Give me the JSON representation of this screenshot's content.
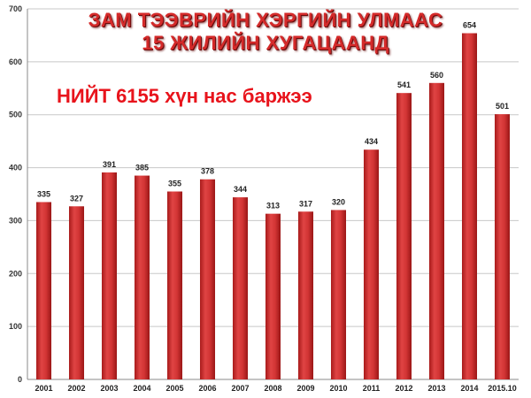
{
  "chart_data": {
    "type": "bar",
    "title_lines": [
      "ЗАМ ТЭЭВРИЙН ХЭРГИЙН УЛМААС",
      "15 ЖИЛИЙН ХУГАЦААНД"
    ],
    "annotation": "НИЙТ 6155 хүн нас  баржээ",
    "categories": [
      "2001",
      "2002",
      "2003",
      "2004",
      "2005",
      "2006",
      "2007",
      "2008",
      "2009",
      "2010",
      "2011",
      "2012",
      "2013",
      "2014",
      "2015.10"
    ],
    "values": [
      335,
      327,
      391,
      385,
      355,
      378,
      344,
      313,
      317,
      320,
      434,
      541,
      560,
      654,
      501
    ],
    "ylim": [
      0,
      700
    ],
    "yticks": [
      0,
      100,
      200,
      300,
      400,
      500,
      600,
      700
    ],
    "grid": true,
    "data_labels": true,
    "xlabel": "",
    "ylabel": "",
    "bar_color": "#c62a2a",
    "title_color": "#d42a2a",
    "annotation_color": "#e8141c"
  }
}
